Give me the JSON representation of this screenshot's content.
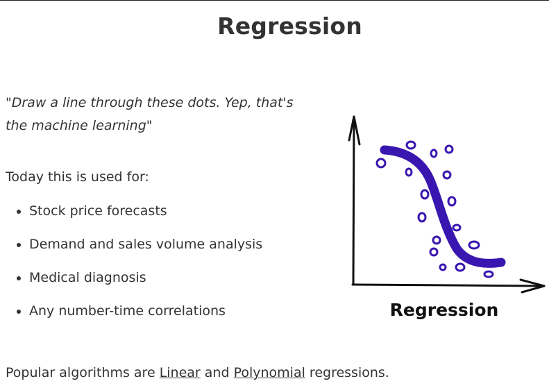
{
  "page": {
    "title": "Regression"
  },
  "quote": "\"Draw a line through these dots. Yep, that's the machine learning\"",
  "uses": {
    "intro": "Today this is used for:",
    "items": [
      "Stock price forecasts",
      "Demand and sales volume analysis",
      "Medical diagnosis",
      "Any number-time correlations"
    ]
  },
  "footer": {
    "prefix": "Popular algorithms are ",
    "link1": "Linear",
    "middle": " and ",
    "link2": "Polynomial",
    "suffix": " regressions."
  },
  "figure": {
    "caption": "Regression",
    "curve_color": "#3a16b0",
    "axis_color": "#111111"
  }
}
